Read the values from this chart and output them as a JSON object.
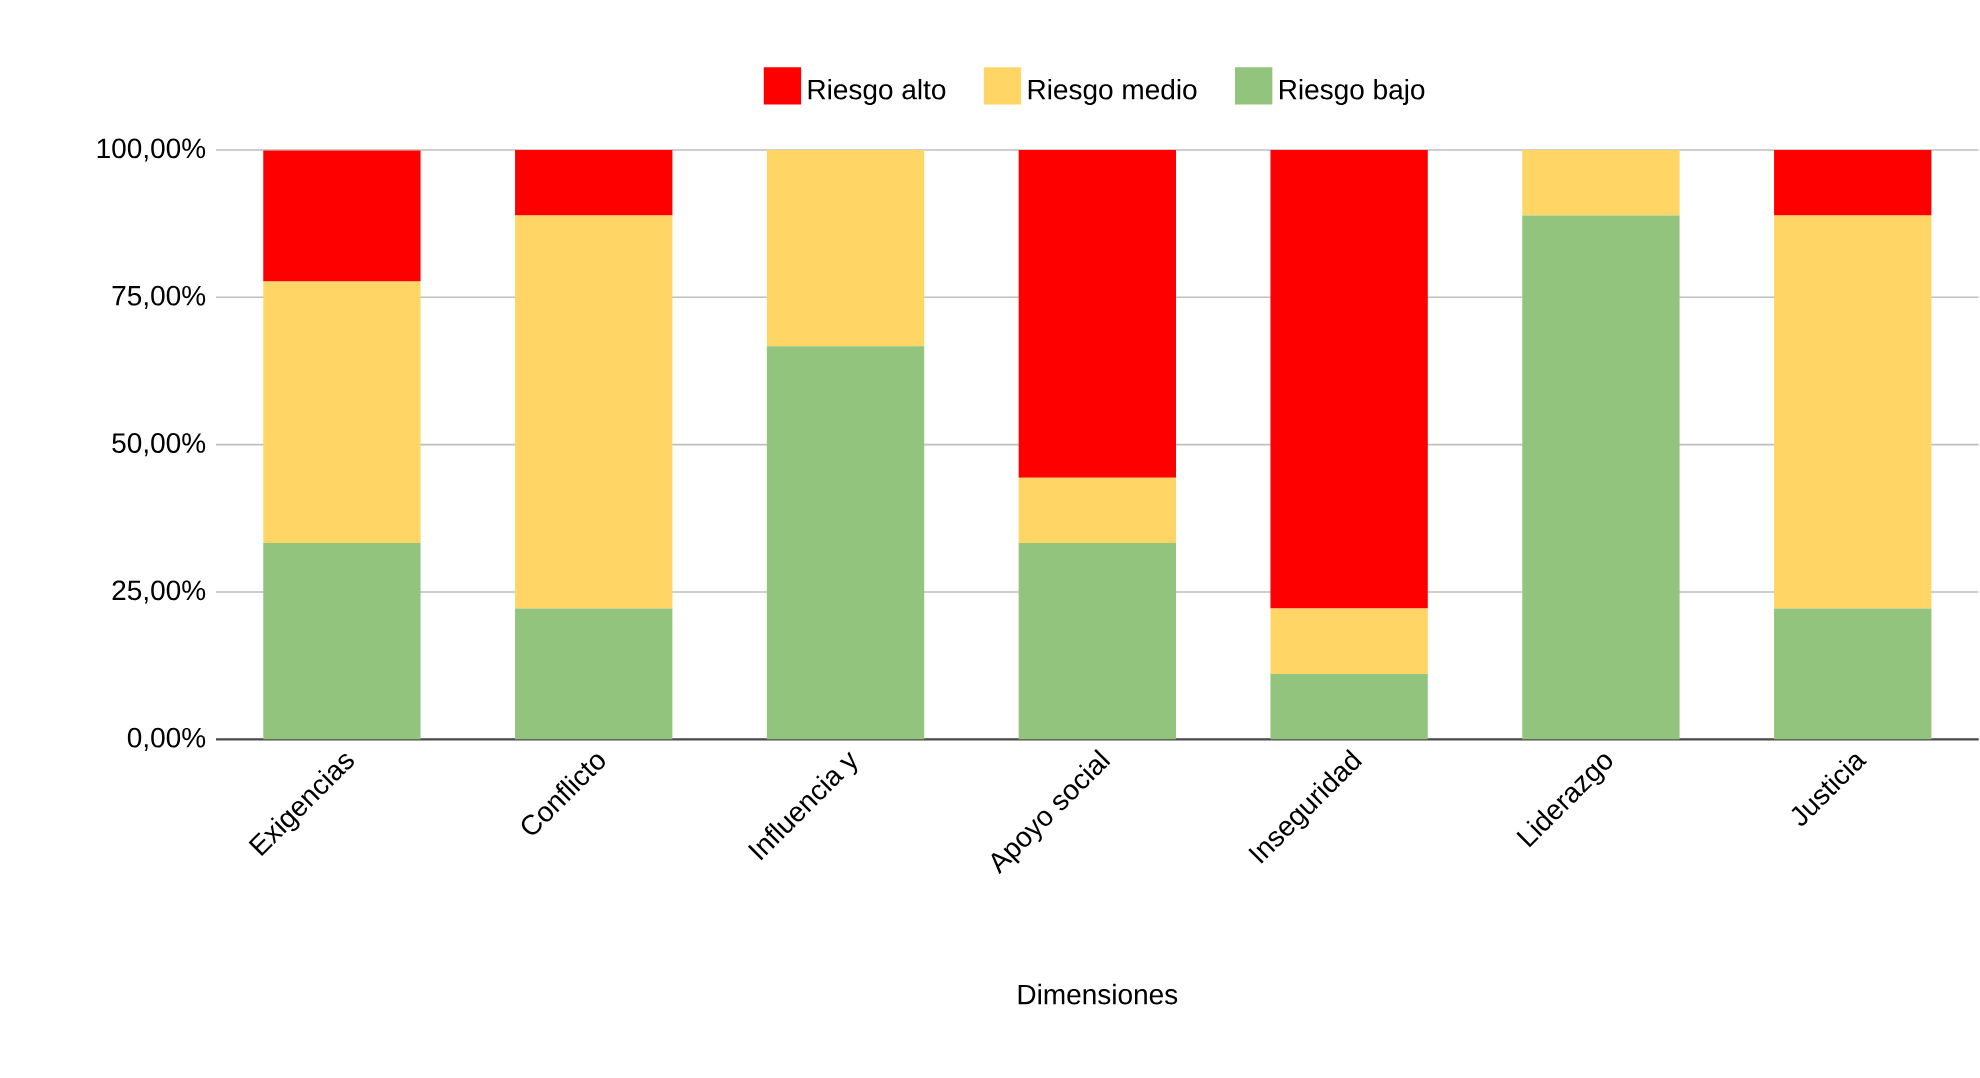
{
  "chart_data": {
    "type": "bar",
    "stacked": true,
    "xlabel": "Dimensiones",
    "categories": [
      "Exigencias",
      "Conflicto",
      "Influencia y",
      "Apoyo social",
      "Inseguridad",
      "Liderazgo",
      "Justicia"
    ],
    "series": [
      {
        "name": "Riesgo bajo",
        "color": "#93c47d",
        "values": [
          33.3,
          22.2,
          66.7,
          33.3,
          11.1,
          88.9,
          22.2
        ]
      },
      {
        "name": "Riesgo medio",
        "color": "#ffd666",
        "values": [
          44.4,
          66.7,
          33.3,
          11.1,
          11.1,
          11.1,
          66.7
        ]
      },
      {
        "name": "Riesgo alto",
        "color": "#ff0000",
        "values": [
          22.2,
          11.1,
          0,
          55.6,
          77.8,
          0,
          11.1
        ]
      }
    ],
    "ylim": [
      0,
      100
    ],
    "yticks": [
      {
        "value": 0,
        "label": "0,00%"
      },
      {
        "value": 25,
        "label": "25,00%"
      },
      {
        "value": 50,
        "label": "50,00%"
      },
      {
        "value": 75,
        "label": "75,00%"
      },
      {
        "value": 100,
        "label": "100,00%"
      }
    ],
    "grid": "y",
    "legend": "top"
  }
}
